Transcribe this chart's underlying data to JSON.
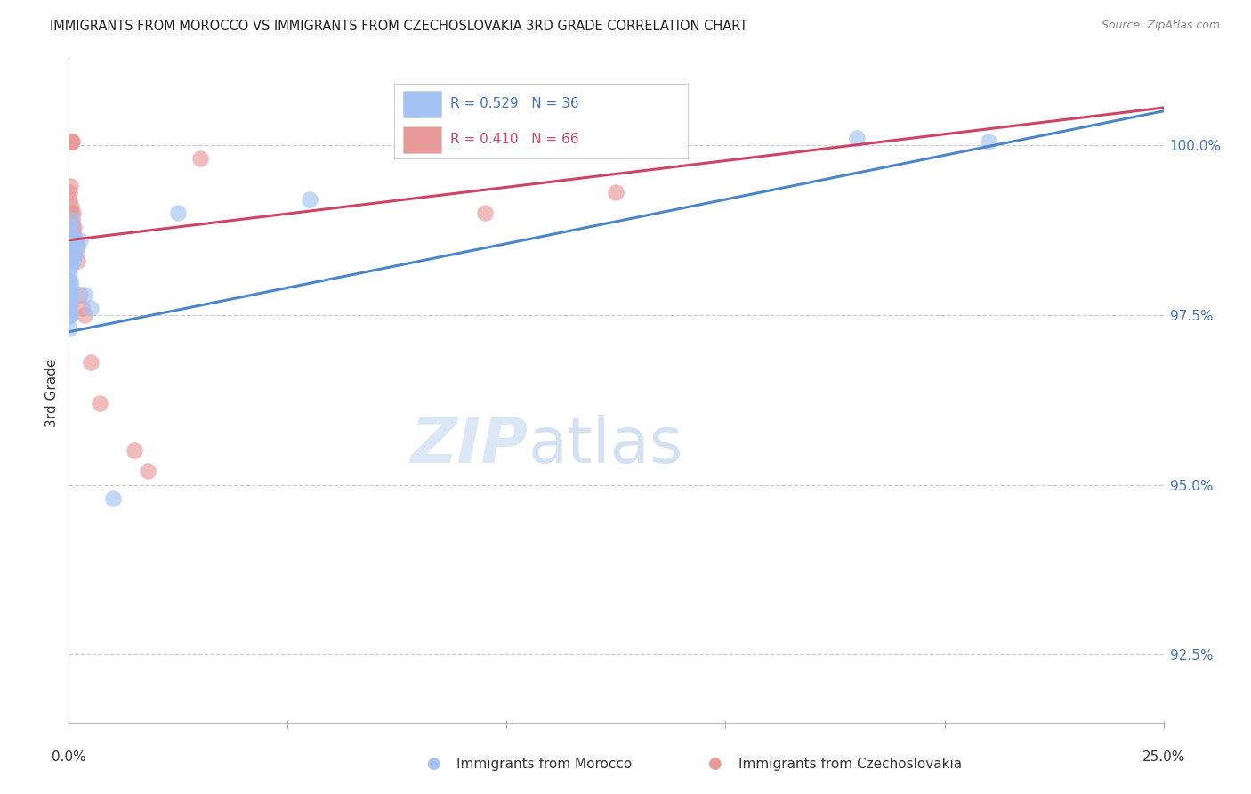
{
  "title": "IMMIGRANTS FROM MOROCCO VS IMMIGRANTS FROM CZECHOSLOVAKIA 3RD GRADE CORRELATION CHART",
  "source": "Source: ZipAtlas.com",
  "ylabel": "3rd Grade",
  "y_ticks": [
    92.5,
    95.0,
    97.5,
    100.0
  ],
  "y_tick_labels": [
    "92.5%",
    "95.0%",
    "97.5%",
    "100.0%"
  ],
  "x_range": [
    0.0,
    25.0
  ],
  "y_range": [
    91.5,
    101.2
  ],
  "watermark_zip": "ZIP",
  "watermark_atlas": "atlas",
  "legend_blue_r": "R = 0.529",
  "legend_blue_n": "N = 36",
  "legend_pink_r": "R = 0.410",
  "legend_pink_n": "N = 66",
  "legend_label1": "Immigrants from Morocco",
  "legend_label2": "Immigrants from Czechoslovakia",
  "blue_color": "#a4c2f4",
  "pink_color": "#ea9999",
  "blue_line_color": "#4a86c8",
  "pink_line_color": "#cc4466",
  "blue_reg_x0": 0.0,
  "blue_reg_y0": 97.25,
  "blue_reg_x1": 25.0,
  "blue_reg_y1": 100.5,
  "pink_reg_x0": 0.0,
  "pink_reg_y0": 98.6,
  "pink_reg_x1": 25.0,
  "pink_reg_y1": 100.55,
  "blue_scatter": [
    [
      0.01,
      97.5
    ],
    [
      0.01,
      97.6
    ],
    [
      0.01,
      97.7
    ],
    [
      0.01,
      97.8
    ],
    [
      0.01,
      98.0
    ],
    [
      0.02,
      97.5
    ],
    [
      0.02,
      97.6
    ],
    [
      0.02,
      97.9
    ],
    [
      0.02,
      98.1
    ],
    [
      0.03,
      97.5
    ],
    [
      0.03,
      97.7
    ],
    [
      0.03,
      98.0
    ],
    [
      0.03,
      98.3
    ],
    [
      0.03,
      98.5
    ],
    [
      0.04,
      97.8
    ],
    [
      0.04,
      98.2
    ],
    [
      0.04,
      98.6
    ],
    [
      0.04,
      98.8
    ],
    [
      0.05,
      97.9
    ],
    [
      0.05,
      98.3
    ],
    [
      0.05,
      98.7
    ],
    [
      0.07,
      98.5
    ],
    [
      0.08,
      98.9
    ],
    [
      0.1,
      98.3
    ],
    [
      0.12,
      98.6
    ],
    [
      0.15,
      98.4
    ],
    [
      0.2,
      98.5
    ],
    [
      0.25,
      98.6
    ],
    [
      0.35,
      97.8
    ],
    [
      0.5,
      97.6
    ],
    [
      1.0,
      94.8
    ],
    [
      2.5,
      99.0
    ],
    [
      5.5,
      99.2
    ],
    [
      18.0,
      100.1
    ],
    [
      21.0,
      100.05
    ],
    [
      0.01,
      97.3
    ]
  ],
  "pink_scatter": [
    [
      0.01,
      100.05
    ],
    [
      0.01,
      100.05
    ],
    [
      0.01,
      100.05
    ],
    [
      0.01,
      100.05
    ],
    [
      0.01,
      100.05
    ],
    [
      0.01,
      100.05
    ],
    [
      0.01,
      100.05
    ],
    [
      0.01,
      100.05
    ],
    [
      0.01,
      100.05
    ],
    [
      0.01,
      100.05
    ],
    [
      0.01,
      100.05
    ],
    [
      0.01,
      100.05
    ],
    [
      0.02,
      100.05
    ],
    [
      0.02,
      100.05
    ],
    [
      0.02,
      100.05
    ],
    [
      0.02,
      100.05
    ],
    [
      0.02,
      100.05
    ],
    [
      0.02,
      100.05
    ],
    [
      0.02,
      100.05
    ],
    [
      0.03,
      100.05
    ],
    [
      0.03,
      100.05
    ],
    [
      0.03,
      100.05
    ],
    [
      0.03,
      100.05
    ],
    [
      0.04,
      100.05
    ],
    [
      0.04,
      100.05
    ],
    [
      0.04,
      100.05
    ],
    [
      0.05,
      100.05
    ],
    [
      0.05,
      100.05
    ],
    [
      0.05,
      100.05
    ],
    [
      0.06,
      100.05
    ],
    [
      0.07,
      100.05
    ],
    [
      0.01,
      99.3
    ],
    [
      0.01,
      99.0
    ],
    [
      0.01,
      98.8
    ],
    [
      0.02,
      99.2
    ],
    [
      0.02,
      98.9
    ],
    [
      0.02,
      98.6
    ],
    [
      0.03,
      99.4
    ],
    [
      0.03,
      98.8
    ],
    [
      0.03,
      98.4
    ],
    [
      0.04,
      98.9
    ],
    [
      0.04,
      98.5
    ],
    [
      0.05,
      99.0
    ],
    [
      0.05,
      98.6
    ],
    [
      0.06,
      99.1
    ],
    [
      0.06,
      98.5
    ],
    [
      0.07,
      98.9
    ],
    [
      0.08,
      98.8
    ],
    [
      0.08,
      98.6
    ],
    [
      0.1,
      99.0
    ],
    [
      0.1,
      98.7
    ],
    [
      0.12,
      98.8
    ],
    [
      0.12,
      98.4
    ],
    [
      0.15,
      98.6
    ],
    [
      0.18,
      98.5
    ],
    [
      0.2,
      98.3
    ],
    [
      0.25,
      97.8
    ],
    [
      0.3,
      97.6
    ],
    [
      0.35,
      97.5
    ],
    [
      0.5,
      96.8
    ],
    [
      0.7,
      96.2
    ],
    [
      1.5,
      95.5
    ],
    [
      1.8,
      95.2
    ],
    [
      3.0,
      99.8
    ],
    [
      9.5,
      99.0
    ],
    [
      12.5,
      99.3
    ]
  ]
}
